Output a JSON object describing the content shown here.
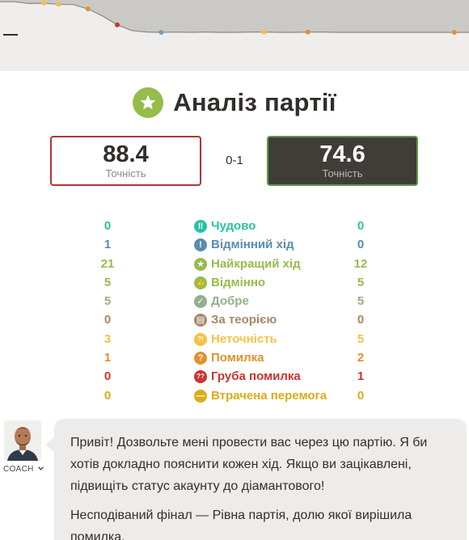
{
  "title": "Аналіз партії",
  "icons": {
    "title": "star-badge-icon"
  },
  "accuracy": {
    "white": {
      "value": "88.4",
      "label": "Точність",
      "border_color": "#b33430"
    },
    "black": {
      "value": "74.6",
      "label": "Точність",
      "border_color": "#5d9948"
    }
  },
  "result": "0-1",
  "graph": {
    "eval_curve": [
      0.95,
      0.95,
      0.9,
      0.91,
      0.88,
      0.87,
      0.75,
      0.55,
      0.3,
      0.14,
      0.1,
      0.09,
      0.1,
      0.09,
      0.1,
      0.09,
      0.09,
      0.1,
      0.1,
      0.09,
      0.09,
      0.1,
      0.1,
      0.09,
      0.09,
      0.09,
      0.09,
      0.09,
      0.09,
      0.09
    ],
    "markers": [
      {
        "move": 3,
        "color": "#f7c045"
      },
      {
        "move": 4,
        "color": "#f7c045"
      },
      {
        "move": 6,
        "color": "#e58f2a"
      },
      {
        "move": 8,
        "color": "#ca3431"
      },
      {
        "move": 11,
        "color": "#749bbf"
      },
      {
        "move": 18,
        "color": "#f7c045"
      },
      {
        "move": 21,
        "color": "#e58f2a"
      },
      {
        "move": 31,
        "color": "#e58f2a"
      }
    ]
  },
  "classifications": [
    {
      "name": "Чудово",
      "white": "0",
      "black": "0",
      "color": "#26c2a3",
      "icon": "brilliant-icon",
      "glyph": "‼"
    },
    {
      "name": "Відмінний хід",
      "white": "1",
      "black": "0",
      "color": "#5b8bb0",
      "icon": "great-move-icon",
      "glyph": "!"
    },
    {
      "name": "Найкращий хід",
      "white": "21",
      "black": "12",
      "color": "#96bc4b",
      "icon": "best-move-icon",
      "glyph": "★"
    },
    {
      "name": "Відмінно",
      "white": "5",
      "black": "5",
      "color": "#96bc4b",
      "icon": "excellent-icon",
      "glyph": "👍"
    },
    {
      "name": "Добре",
      "white": "5",
      "black": "5",
      "color": "#96af8b",
      "icon": "good-icon",
      "glyph": "✓"
    },
    {
      "name": "За теорією",
      "white": "0",
      "black": "0",
      "color": "#a88865",
      "icon": "book-icon",
      "glyph": "▤"
    },
    {
      "name": "Неточність",
      "white": "3",
      "black": "5",
      "color": "#f7c045",
      "icon": "inaccuracy-icon",
      "glyph": "?!"
    },
    {
      "name": "Помилка",
      "white": "1",
      "black": "2",
      "color": "#e58f2a",
      "icon": "mistake-icon",
      "glyph": "?"
    },
    {
      "name": "Груба помилка",
      "white": "0",
      "black": "1",
      "color": "#ca3431",
      "icon": "blunder-icon",
      "glyph": "??"
    },
    {
      "name": "Втрачена перемога",
      "white": "0",
      "black": "0",
      "color": "#dbac16",
      "icon": "missed-win-icon",
      "glyph": "—"
    }
  ],
  "coach": {
    "label": "COACH",
    "messages": [
      "Привіт! Дозвольте мені провести вас через цю партію. Я би хотів докладно пояснити кожен хід. Якщо ви зацікавлені, підвищіть статус акаунту до діамантового!",
      "Несподіваний фінал — Рівна партія, долю якої вирішила помилка."
    ]
  }
}
